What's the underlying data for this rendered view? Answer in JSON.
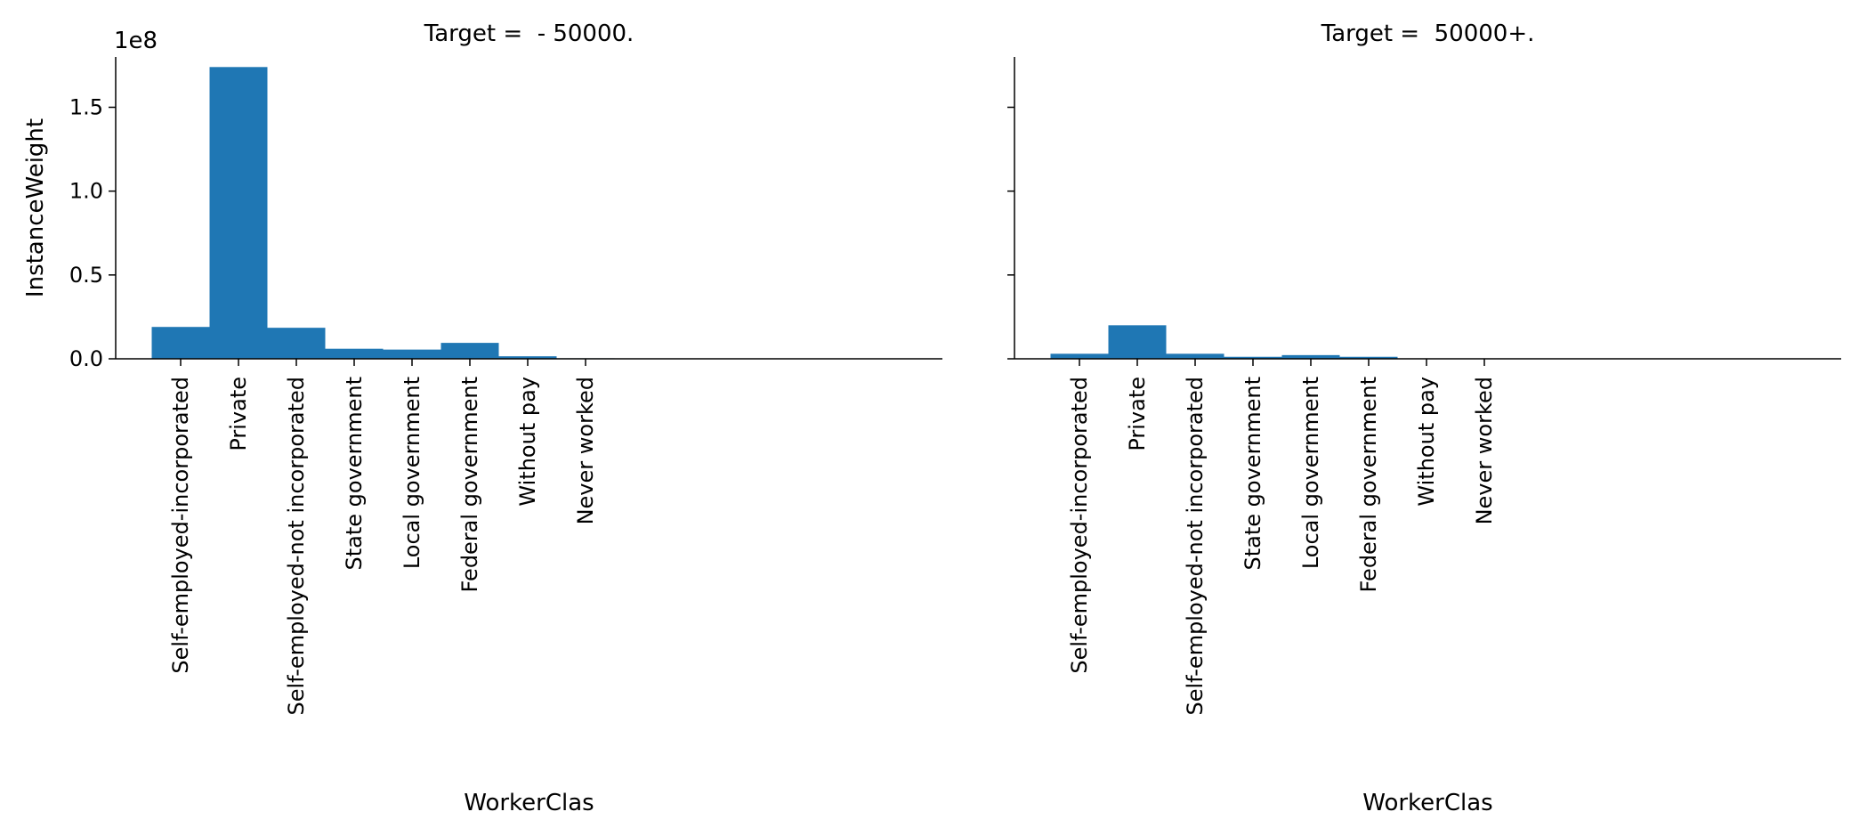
{
  "chart_data": {
    "type": "bar",
    "ylabel": "InstanceWeight",
    "ylim": [
      0,
      180000000
    ],
    "y_offset_label": "1e8",
    "yticks": [
      0,
      50000000,
      100000000,
      150000000
    ],
    "ytick_labels": [
      "0.0",
      "0.5",
      "1.0",
      "1.5"
    ],
    "bar_color": "#1f77b4",
    "panels": [
      {
        "title": "Target =  - 50000.",
        "xlabel": "WorkerClas",
        "categories": [
          "Self-employed-incorporated",
          "Private",
          "Self-employed-not incorporated",
          "State government",
          "Local government",
          "Federal government",
          "Without pay",
          "Never worked"
        ],
        "values": [
          19000000,
          174000000,
          18500000,
          6000000,
          5500000,
          9500000,
          1500000,
          300000
        ]
      },
      {
        "title": "Target =  50000+.",
        "xlabel": "WorkerClas",
        "categories": [
          "Self-employed-incorporated",
          "Private",
          "Self-employed-not incorporated",
          "State government",
          "Local government",
          "Federal government",
          "Without pay",
          "Never worked"
        ],
        "values": [
          3000000,
          20000000,
          3000000,
          1200000,
          2200000,
          1200000,
          100000,
          50000
        ]
      }
    ]
  }
}
